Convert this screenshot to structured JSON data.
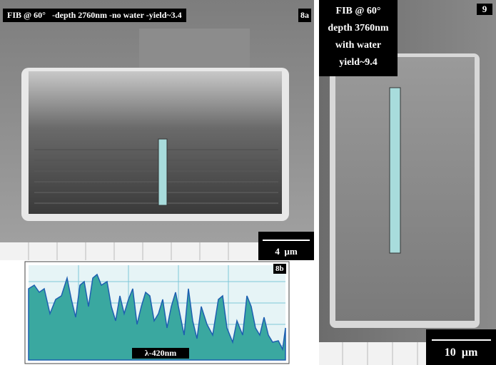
{
  "panels": [
    {
      "label": "8a",
      "caption": "FIB @ 60°   -depth 2760nm -no water -yield~3.4",
      "scale_bar": "4  µm"
    },
    {
      "label": "8b",
      "caption": "λ-420nm"
    },
    {
      "label": "9",
      "caption_lines": [
        "FIB @ 60°",
        "depth 3760nm",
        "with water",
        "yield~9.4"
      ],
      "scale_bar": "10  µm"
    }
  ]
}
